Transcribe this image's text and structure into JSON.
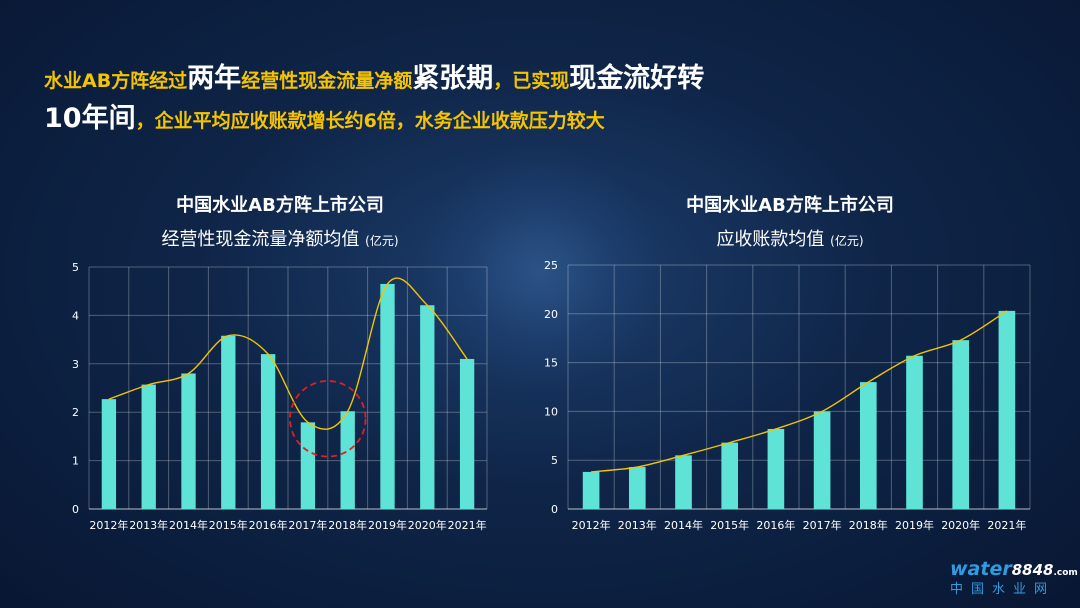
{
  "headline": {
    "line1": [
      {
        "text": "水业AB方阵经过",
        "style": "y"
      },
      {
        "text": "两年",
        "style": "w"
      },
      {
        "text": "经营性现金流量净额",
        "style": "y"
      },
      {
        "text": "紧张期",
        "style": "w"
      },
      {
        "text": "，已实现",
        "style": "y"
      },
      {
        "text": "现金流好转",
        "style": "w"
      }
    ],
    "line2": [
      {
        "text": "10年间",
        "style": "w"
      },
      {
        "text": "，企业平均应收账款增长约6倍，水务企业收款压力较大",
        "style": "y"
      }
    ]
  },
  "colors": {
    "bar": "#5fe3d6",
    "trend": "#f2c500",
    "highlight": "#e02020",
    "accent": "#f5c400"
  },
  "chart_data": [
    {
      "type": "bar",
      "title": "中国水业AB方阵上市公司",
      "subtitle": "经营性现金流量净额均值",
      "unit": "(亿元)",
      "categories": [
        "2012年",
        "2013年",
        "2014年",
        "2015年",
        "2016年",
        "2017年",
        "2018年",
        "2019年",
        "2020年",
        "2021年"
      ],
      "values": [
        2.27,
        2.57,
        2.8,
        3.58,
        3.2,
        1.79,
        2.02,
        4.65,
        4.21,
        3.1
      ],
      "ylim": [
        0,
        5
      ],
      "yticks": [
        "0",
        "1",
        "2",
        "3",
        "4",
        "5"
      ],
      "grid": true,
      "trendline": "smooth",
      "highlight_categories": [
        "2017年",
        "2018年"
      ]
    },
    {
      "type": "bar",
      "title": "中国水业AB方阵上市公司",
      "subtitle": "应收账款均值",
      "unit": "(亿元)",
      "categories": [
        "2012年",
        "2013年",
        "2014年",
        "2015年",
        "2016年",
        "2017年",
        "2018年",
        "2019年",
        "2020年",
        "2021年"
      ],
      "values": [
        3.8,
        4.3,
        5.5,
        6.8,
        8.2,
        10.0,
        13.0,
        15.7,
        17.3,
        20.3
      ],
      "ylim": [
        0,
        25
      ],
      "yticks": [
        "0",
        "5",
        "10",
        "15",
        "20",
        "25"
      ],
      "grid": true,
      "trendline": "smooth"
    }
  ],
  "logo": {
    "brand": "water",
    "num": "8848",
    "com": ".com",
    "cn": "中国水业网"
  }
}
